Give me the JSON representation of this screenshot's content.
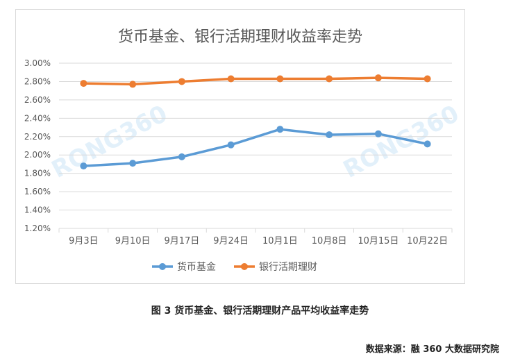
{
  "chart_data": {
    "type": "line",
    "title": "货币基金、银行活期理财收益率走势",
    "categories": [
      "9月3日",
      "9月10日",
      "9月17日",
      "9月24日",
      "10月1日",
      "10月8日",
      "10月15日",
      "10月22日"
    ],
    "series": [
      {
        "name": "货币基金",
        "color": "#5b9bd5",
        "values": [
          1.88,
          1.91,
          1.98,
          2.11,
          2.28,
          2.22,
          2.23,
          2.12
        ]
      },
      {
        "name": "银行活期理财",
        "color": "#ed7d31",
        "values": [
          2.78,
          2.77,
          2.8,
          2.83,
          2.83,
          2.83,
          2.84,
          2.83
        ]
      }
    ],
    "y_ticks": [
      "3.00%",
      "2.80%",
      "2.60%",
      "2.40%",
      "2.20%",
      "2.00%",
      "1.80%",
      "1.60%",
      "1.40%",
      "1.20%"
    ],
    "ylim": [
      1.2,
      3.0
    ],
    "y_unit": "%",
    "grid": true,
    "legend_position": "bottom",
    "watermarks": [
      "RONG360",
      "RONG360"
    ]
  },
  "caption": "图 3  货币基金、银行活期理财产品平均收益率走势",
  "source": "数据来源：融 360 大数据研究院"
}
